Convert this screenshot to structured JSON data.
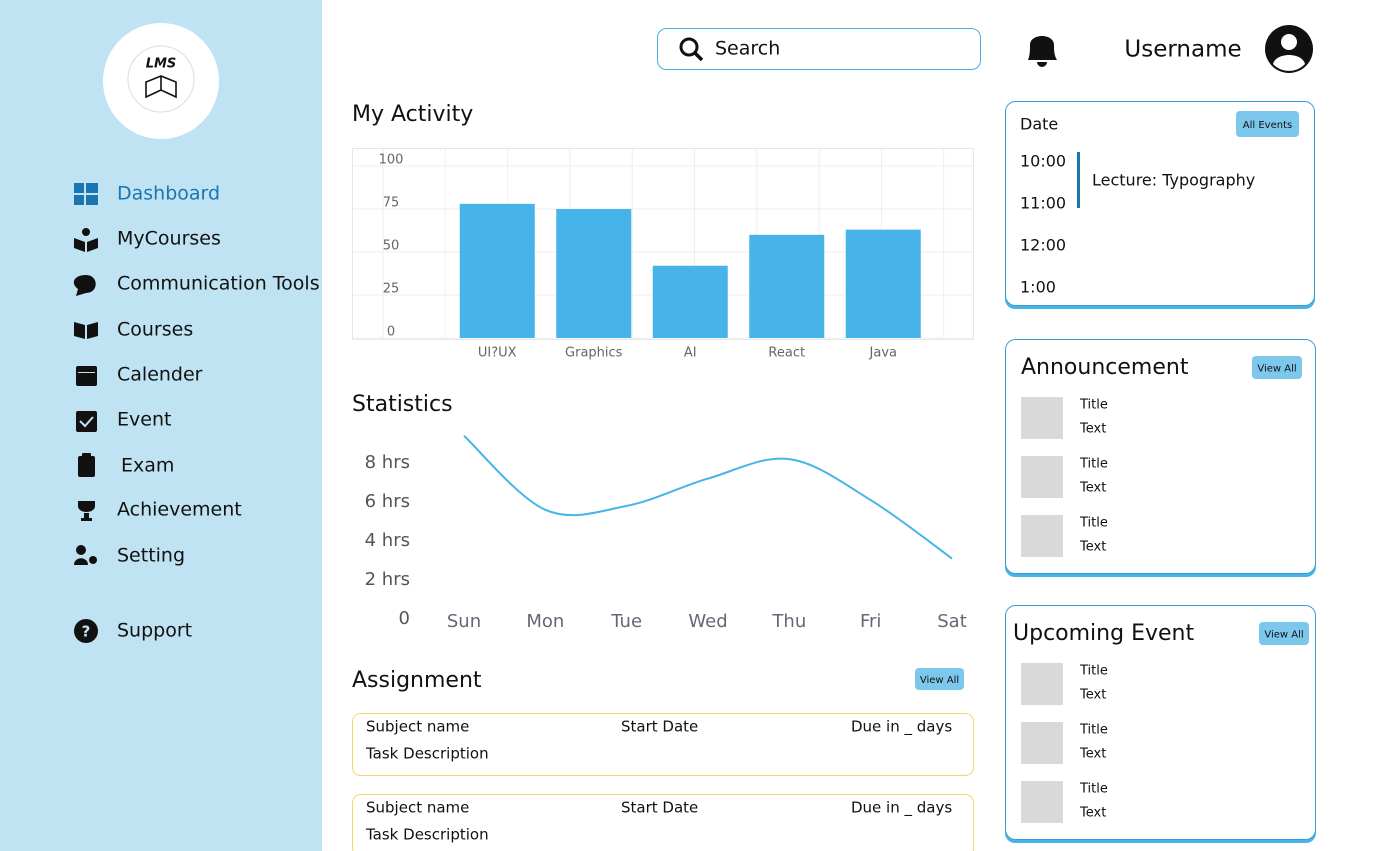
{
  "sidebar": {
    "logo": "LMS",
    "nav": [
      "Dashboard",
      "MyCourses",
      "Communication Tools",
      "Courses",
      "Calender",
      "Event",
      "Exam",
      "Achievement",
      "Setting"
    ],
    "support": "Support"
  },
  "header": {
    "search": "Search",
    "username": "Username"
  },
  "chart_data": [
    {
      "type": "bar",
      "title": "My Activity",
      "categories": [
        "UI?UX",
        "Graphics",
        "AI",
        "React",
        "Java"
      ],
      "values": [
        78,
        75,
        42,
        60,
        63
      ],
      "color": "#46b4e8",
      "ylim": [
        0,
        100
      ],
      "yticks": [
        0,
        25,
        50,
        75,
        100
      ],
      "grid": true
    },
    {
      "type": "line",
      "title": "Statistics",
      "categories": [
        "Sun",
        "Mon",
        "Tue",
        "Wed",
        "Thu",
        "Fri",
        "Sat"
      ],
      "values": [
        9.4,
        5.6,
        5.8,
        7.2,
        8.2,
        6.1,
        3.1
      ],
      "color": "#46b4e8",
      "ylim": [
        0,
        10
      ],
      "yticks": [
        0,
        {
          "value": 2,
          "label": "2 hrs"
        },
        {
          "value": 4,
          "label": "4 hrs"
        },
        {
          "value": 6,
          "label": "6 hrs"
        },
        {
          "value": 8,
          "label": "8 hrs"
        }
      ],
      "grid": false
    }
  ],
  "assignment": {
    "title": "Assignment",
    "button": "View All",
    "items": [
      {
        "subject": "Subject name",
        "start": "Start Date",
        "due": "Due in _ days",
        "description": "Task Description"
      },
      {
        "subject": "Subject name",
        "start": "Start Date",
        "due": "Due in _ days",
        "description": "Task Description"
      }
    ]
  },
  "events": {
    "title": "Date",
    "button": "All Events",
    "times": [
      "10:00",
      "11:00",
      "12:00",
      "1:00"
    ],
    "event": "Lecture: Typography"
  },
  "announcement": {
    "title": "Announcement",
    "button": "View All",
    "items": [
      {
        "title": "Title",
        "text": "Text"
      },
      {
        "title": "Title",
        "text": "Text"
      },
      {
        "title": "Title",
        "text": "Text"
      }
    ]
  },
  "upcoming_event": {
    "title": "Upcoming Event",
    "button": "View All",
    "items": [
      {
        "title": "Title",
        "text": "Text"
      },
      {
        "title": "Title",
        "text": "Text"
      },
      {
        "title": "Title",
        "text": "Text"
      }
    ]
  }
}
